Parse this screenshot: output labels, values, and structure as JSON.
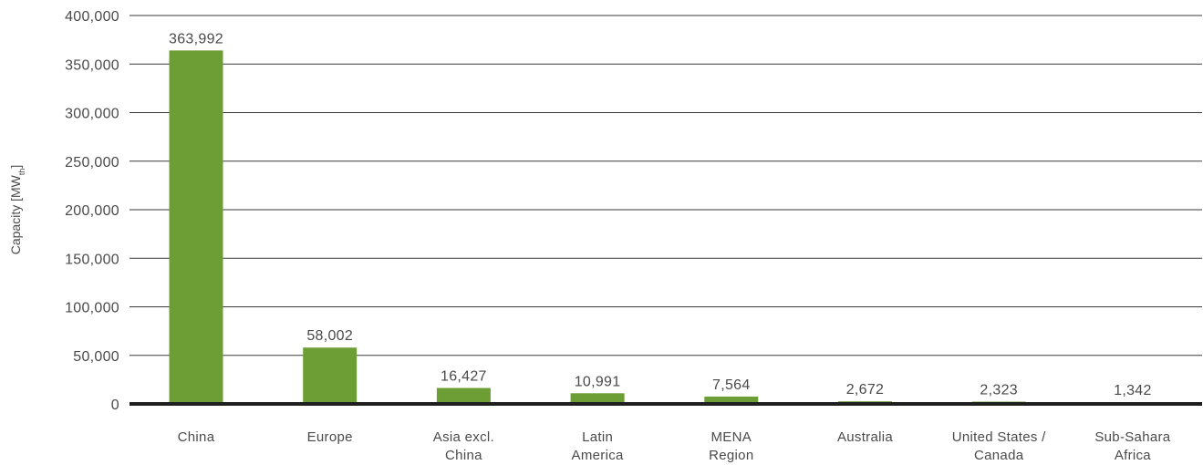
{
  "chart_data": {
    "type": "bar",
    "title": "",
    "xlabel": "",
    "ylabel": "Capacity [MW",
    "ylabel_subscript": "th",
    "ylabel_suffix": "]",
    "categories": [
      [
        "China"
      ],
      [
        "Europe"
      ],
      [
        "Asia excl.",
        "China"
      ],
      [
        "Latin",
        "America"
      ],
      [
        "MENA",
        "Region"
      ],
      [
        "Australia"
      ],
      [
        "United States /",
        "Canada"
      ],
      [
        "Sub-Sahara",
        "Africa"
      ]
    ],
    "values": [
      363992,
      58002,
      16427,
      10991,
      7564,
      2672,
      2323,
      1342
    ],
    "data_labels": [
      "363,992",
      "58,002",
      "16,427",
      "10,991",
      "7,564",
      "2,672",
      "2,323",
      "1,342"
    ],
    "yticks": [
      0,
      50000,
      100000,
      150000,
      200000,
      250000,
      300000,
      350000,
      400000
    ],
    "ytick_labels": [
      "0",
      "50,000",
      "100,000",
      "150,000",
      "200,000",
      "250,000",
      "300,000",
      "350,000",
      "400,000"
    ],
    "ylim": [
      0,
      400000
    ],
    "grid": true,
    "legend": "none",
    "colors": {
      "bar": "#6d9e35",
      "grid": "#3a3a3a",
      "baseline": "#1f1f1f",
      "text": "#4a4a4a"
    }
  }
}
